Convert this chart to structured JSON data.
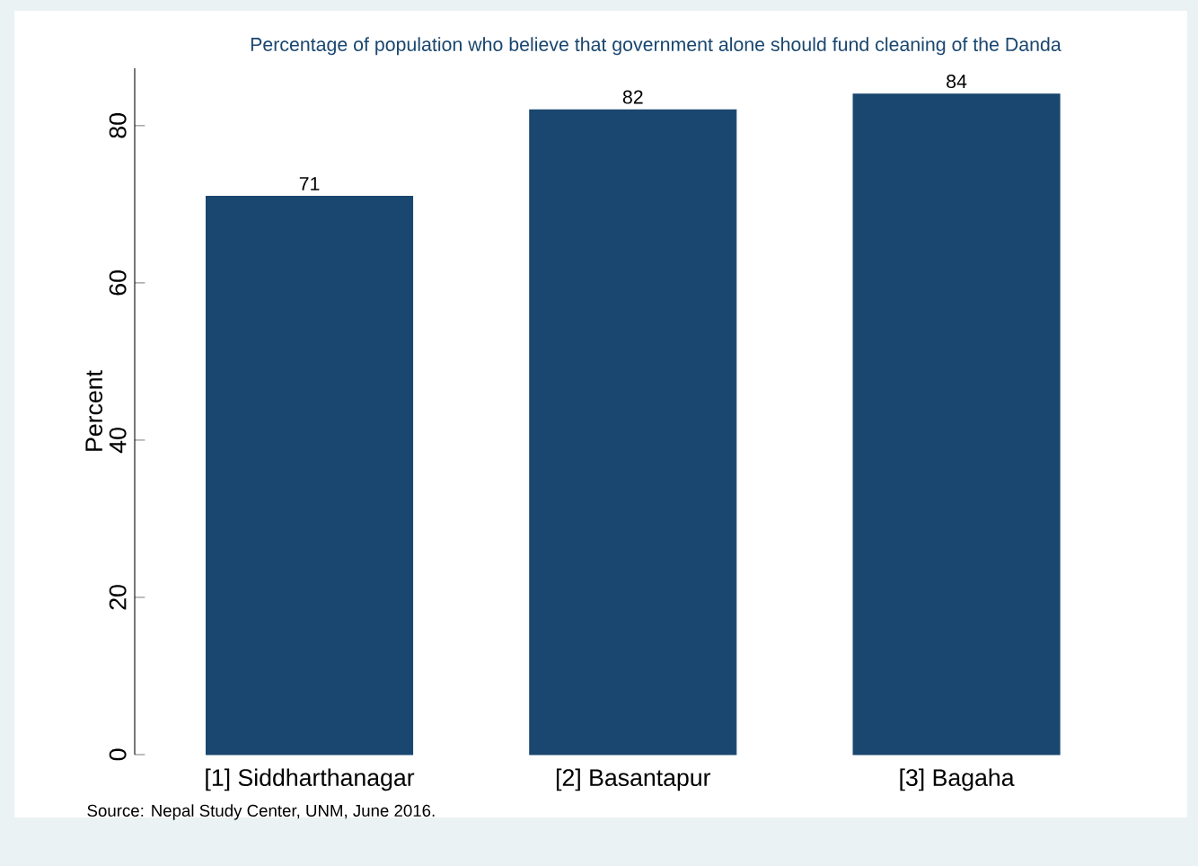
{
  "chart_data": {
    "type": "bar",
    "title": "Percentage of population who believe that government alone should fund cleaning of the Danda",
    "categories": [
      "[1] Siddharthanagar",
      "[2] Basantapur",
      "[3] Bagaha"
    ],
    "values": [
      71,
      82,
      84
    ],
    "color": "#1a476f",
    "data_labels": true,
    "ylabel": "Percent",
    "ylim": [
      0,
      87.3
    ],
    "yticks": [
      0,
      20,
      40,
      60,
      80
    ],
    "grid": false,
    "annotations": [
      "Source: Nepal Study Center, UNM, June 2016."
    ]
  }
}
